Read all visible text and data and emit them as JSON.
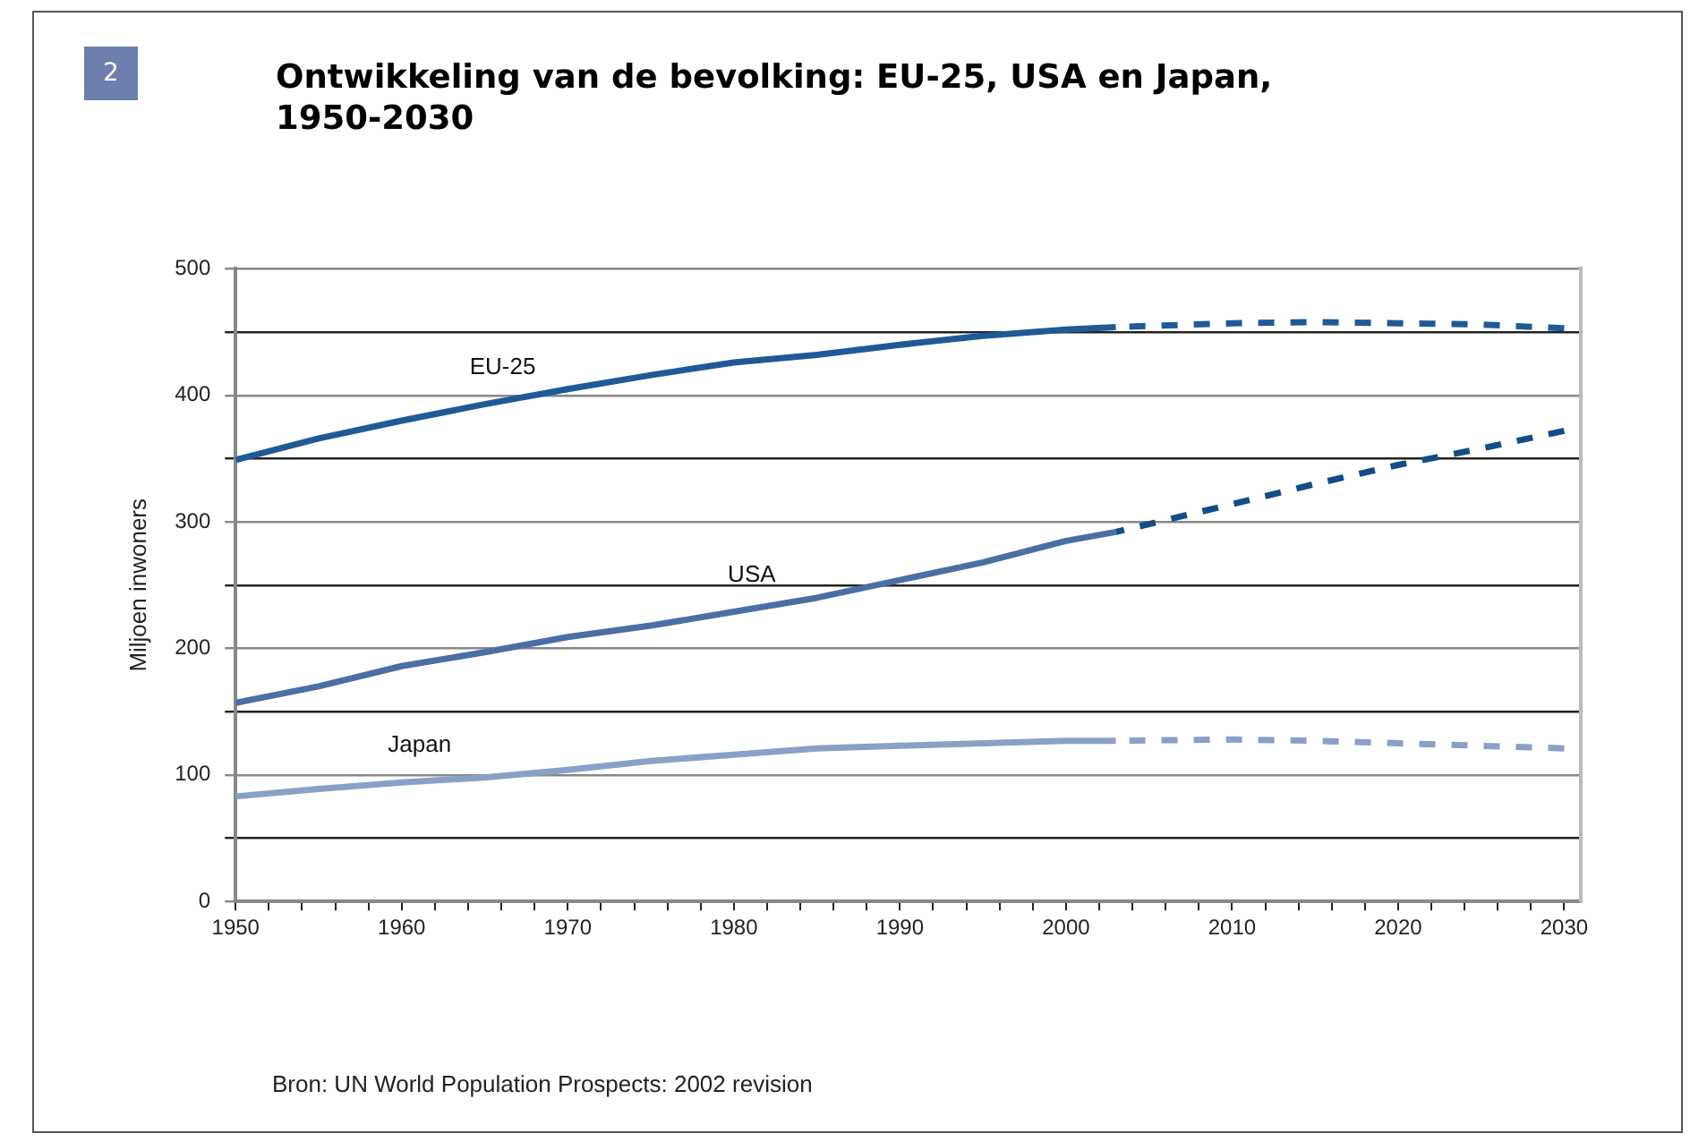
{
  "chart_data": {
    "type": "line",
    "title": "Ontwikkeling van de bevolking: EU-25, USA en Japan, 1950-2030",
    "ylabel": "Miljoen inwoners",
    "annotations": [
      "2",
      "Bron: UN World Population Prospects: 2002 revision"
    ],
    "xlim": [
      1950,
      2031
    ],
    "xticks": [
      {
        "value": 1950,
        "label": "1950"
      },
      {
        "value": 1952,
        "label": null
      },
      {
        "value": 1954,
        "label": null
      },
      {
        "value": 1956,
        "label": null
      },
      {
        "value": 1958,
        "label": null
      },
      {
        "value": 1960,
        "label": "1960"
      },
      {
        "value": 1962,
        "label": null
      },
      {
        "value": 1964,
        "label": null
      },
      {
        "value": 1966,
        "label": null
      },
      {
        "value": 1968,
        "label": null
      },
      {
        "value": 1970,
        "label": "1970"
      },
      {
        "value": 1972,
        "label": null
      },
      {
        "value": 1974,
        "label": null
      },
      {
        "value": 1976,
        "label": null
      },
      {
        "value": 1978,
        "label": null
      },
      {
        "value": 1980,
        "label": "1980"
      },
      {
        "value": 1982,
        "label": null
      },
      {
        "value": 1984,
        "label": null
      },
      {
        "value": 1986,
        "label": null
      },
      {
        "value": 1988,
        "label": null
      },
      {
        "value": 1990,
        "label": "1990"
      },
      {
        "value": 1992,
        "label": null
      },
      {
        "value": 1994,
        "label": null
      },
      {
        "value": 1996,
        "label": null
      },
      {
        "value": 1998,
        "label": null
      },
      {
        "value": 2000,
        "label": "2000"
      },
      {
        "value": 2002,
        "label": null
      },
      {
        "value": 2004,
        "label": null
      },
      {
        "value": 2006,
        "label": null
      },
      {
        "value": 2008,
        "label": null
      },
      {
        "value": 2010,
        "label": "2010"
      },
      {
        "value": 2012,
        "label": null
      },
      {
        "value": 2014,
        "label": null
      },
      {
        "value": 2016,
        "label": null
      },
      {
        "value": 2018,
        "label": null
      },
      {
        "value": 2020,
        "label": "2020"
      },
      {
        "value": 2022,
        "label": null
      },
      {
        "value": 2024,
        "label": null
      },
      {
        "value": 2026,
        "label": null
      },
      {
        "value": 2028,
        "label": null
      },
      {
        "value": 2030,
        "label": "2030"
      }
    ],
    "ylim": [
      0,
      500
    ],
    "yticks": [
      0,
      {
        "value": 50,
        "label": null
      },
      100,
      {
        "value": 150,
        "label": null
      },
      200,
      {
        "value": 250,
        "label": null
      },
      300,
      {
        "value": 350,
        "label": null
      },
      400,
      {
        "value": 450,
        "label": null
      },
      500
    ],
    "grid": "y",
    "legend": false,
    "marker": "none",
    "series": [
      {
        "name": "EU-25",
        "color": "#1f5a96",
        "line_style": "solid",
        "x": [
          1950,
          1955,
          1960,
          1965,
          1970,
          1975,
          1980,
          1985,
          1990,
          1995,
          2000,
          2003
        ],
        "values": [
          349,
          366,
          380,
          393,
          405,
          416,
          426,
          432,
          440,
          447,
          452,
          454
        ]
      },
      {
        "color": "#1f5a96",
        "line_style": "dashed",
        "x": [
          2003,
          2010,
          2015,
          2020,
          2025,
          2030
        ],
        "values": [
          454,
          457,
          458,
          457,
          456,
          453
        ]
      },
      {
        "name": "USA",
        "color": "#4a6fa5",
        "line_style": "solid",
        "x": [
          1950,
          1955,
          1960,
          1965,
          1970,
          1975,
          1980,
          1985,
          1990,
          1995,
          2000,
          2003
        ],
        "values": [
          157,
          170,
          186,
          197,
          209,
          218,
          229,
          240,
          254,
          268,
          285,
          292
        ]
      },
      {
        "color": "#124d87",
        "line_style": "dashed",
        "x": [
          2003,
          2010,
          2015,
          2020,
          2025,
          2030
        ],
        "values": [
          292,
          314,
          330,
          345,
          358,
          372
        ]
      },
      {
        "name": "Japan",
        "color": "#8aa0c8",
        "line_style": "solid",
        "x": [
          1950,
          1955,
          1960,
          1965,
          1970,
          1975,
          1980,
          1985,
          1990,
          1995,
          2000,
          2003
        ],
        "values": [
          83,
          89,
          94,
          98,
          104,
          111,
          116,
          121,
          123,
          125,
          127,
          127
        ]
      },
      {
        "color": "#8aa0c8",
        "line_style": "dashed",
        "x": [
          2003,
          2010,
          2015,
          2020,
          2025,
          2030
        ],
        "values": [
          127,
          128,
          127,
          125,
          123,
          121
        ]
      }
    ]
  }
}
